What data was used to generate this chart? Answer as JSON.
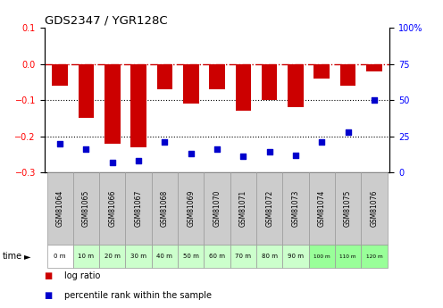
{
  "title": "GDS2347 / YGR128C",
  "samples": [
    "GSM81064",
    "GSM81065",
    "GSM81066",
    "GSM81067",
    "GSM81068",
    "GSM81069",
    "GSM81070",
    "GSM81071",
    "GSM81072",
    "GSM81073",
    "GSM81074",
    "GSM81075",
    "GSM81076"
  ],
  "time_labels": [
    "0 m",
    "10 m",
    "20 m",
    "30 m",
    "40 m",
    "50 m",
    "60 m",
    "70 m",
    "80 m",
    "90 m",
    "100 m",
    "110 m",
    "120 m"
  ],
  "log_ratio": [
    -0.06,
    -0.15,
    -0.22,
    -0.23,
    -0.07,
    -0.11,
    -0.07,
    -0.13,
    -0.1,
    -0.12,
    -0.04,
    -0.06,
    -0.02
  ],
  "percentile_right": [
    20,
    16,
    7,
    8,
    21,
    13,
    16,
    11,
    14,
    12,
    21,
    28,
    50
  ],
  "bar_color": "#cc0000",
  "dot_color": "#0000cc",
  "ylim_left": [
    -0.3,
    0.1
  ],
  "ylim_right": [
    0,
    100
  ],
  "right_ticks": [
    0,
    25,
    50,
    75,
    100
  ],
  "right_tick_labels": [
    "0",
    "25",
    "50",
    "75",
    "100%"
  ],
  "left_ticks": [
    -0.3,
    -0.2,
    -0.1,
    0,
    0.1
  ],
  "sample_box_color": "#cccccc",
  "sample_box_edge": "#999999",
  "time_row_colors": [
    "#ffffff",
    "#ccffcc",
    "#ccffcc",
    "#ccffcc",
    "#ccffcc",
    "#ccffcc",
    "#ccffcc",
    "#ccffcc",
    "#ccffcc",
    "#ccffcc",
    "#99ff99",
    "#99ff99",
    "#99ff99"
  ],
  "legend_items": [
    {
      "label": "log ratio",
      "color": "#cc0000"
    },
    {
      "label": "percentile rank within the sample",
      "color": "#0000cc"
    }
  ]
}
